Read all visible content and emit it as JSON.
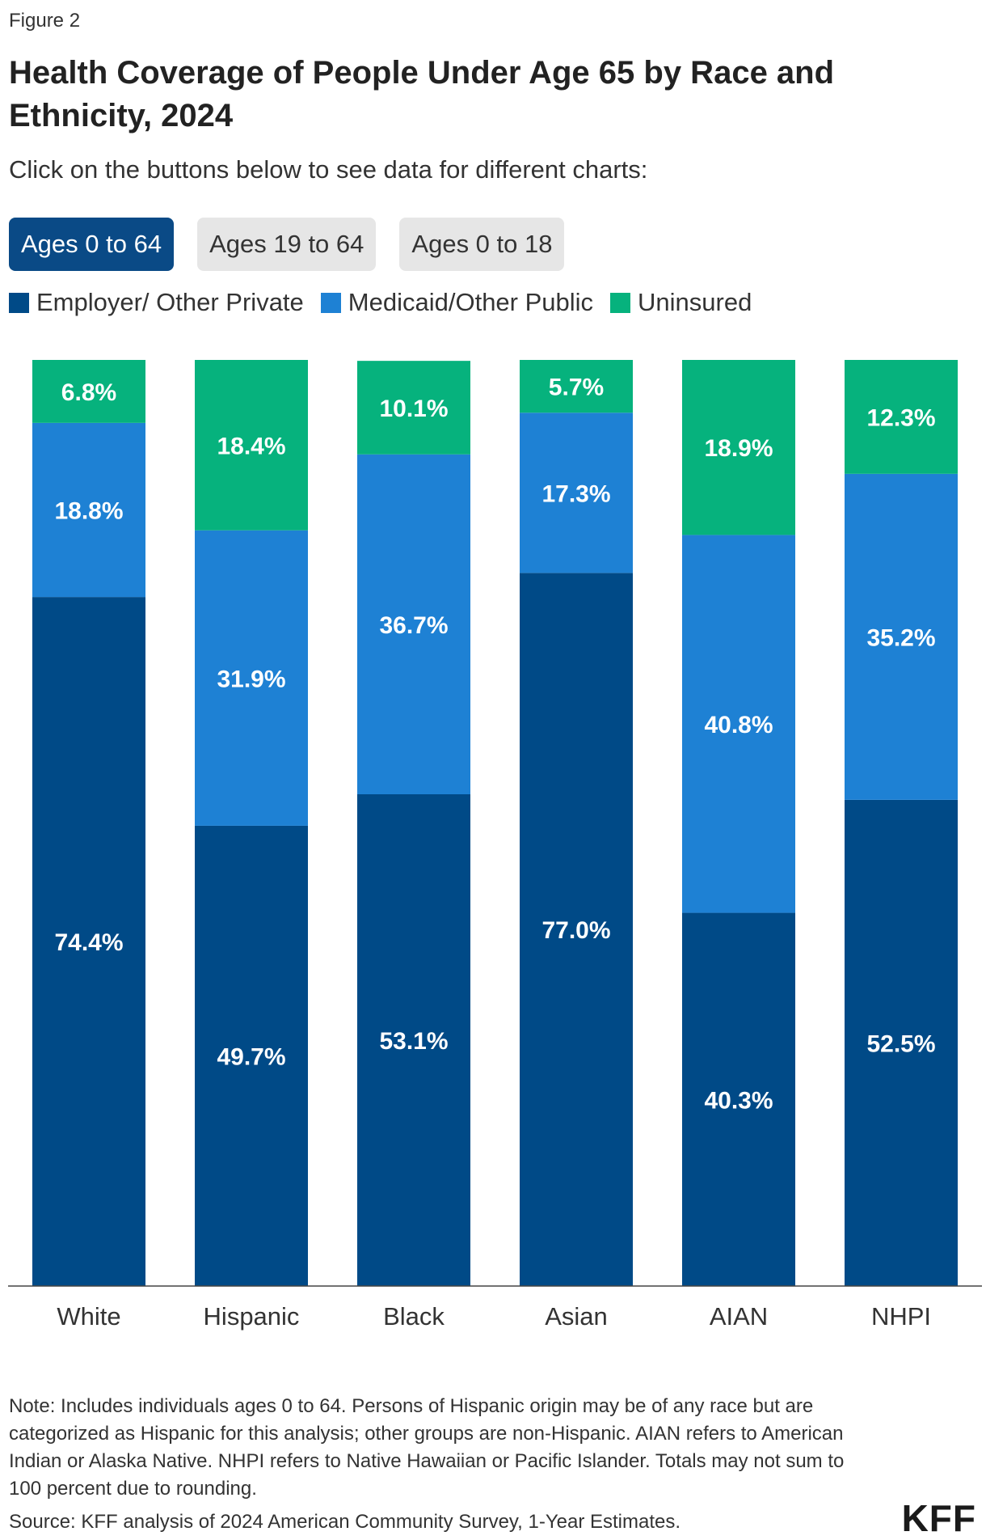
{
  "figure_label": "Figure 2",
  "title": "Health Coverage of People Under Age 65 by Race and Ethnicity, 2024",
  "subtitle": "Click on the buttons below to see data for different charts:",
  "buttons": [
    {
      "label": "Ages 0 to 64",
      "active": true
    },
    {
      "label": "Ages 19 to 64",
      "active": false
    },
    {
      "label": "Ages 0 to 18",
      "active": false
    }
  ],
  "colors": {
    "employer": "#004a87",
    "medicaid": "#1e81d4",
    "uninsured": "#06b27d",
    "active_button": "#0a4a86",
    "inactive_button": "#e6e6e6"
  },
  "chart_data": {
    "type": "bar",
    "stacked": true,
    "categories": [
      "White",
      "Hispanic",
      "Black",
      "Asian",
      "AIAN",
      "NHPI"
    ],
    "series": [
      {
        "name": "Employer/ Other Private",
        "values": [
          74.4,
          49.7,
          53.1,
          77.0,
          40.3,
          52.5
        ],
        "color": "#004a87"
      },
      {
        "name": "Medicaid/Other Public",
        "values": [
          18.8,
          31.9,
          36.7,
          17.3,
          40.8,
          35.2
        ],
        "color": "#1e81d4"
      },
      {
        "name": "Uninsured",
        "values": [
          6.8,
          18.4,
          10.1,
          5.7,
          18.9,
          12.3
        ],
        "color": "#06b27d"
      }
    ],
    "value_suffix": "%",
    "ylim": [
      0,
      100
    ],
    "grid": false,
    "legend_position": "top-left"
  },
  "note": "Note: Includes individuals ages 0 to 64. Persons of Hispanic origin may be of any race but are categorized as Hispanic for this analysis; other groups are non-Hispanic. AIAN refers to American Indian or Alaska Native. NHPI refers to Native Hawaiian or Pacific Islander. Totals may not sum to 100 percent due to rounding.",
  "source": "Source: KFF analysis of 2024 American Community Survey, 1-Year Estimates.",
  "logo_text": "KFF"
}
